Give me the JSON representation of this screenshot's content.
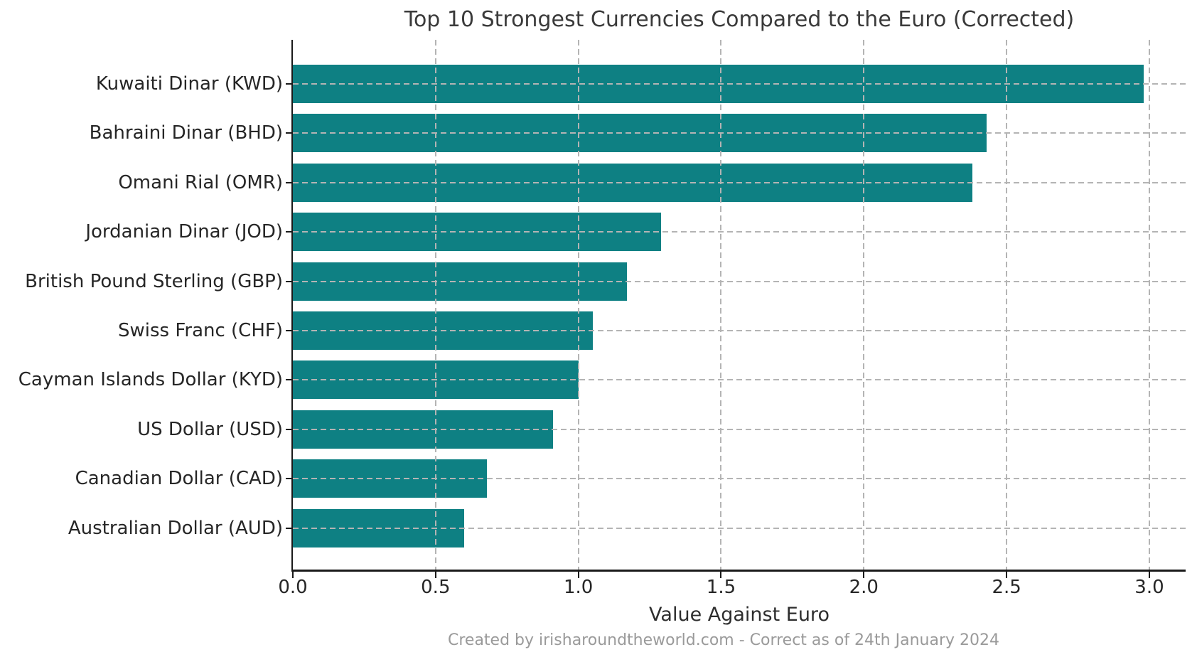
{
  "chart_data": {
    "type": "bar",
    "orientation": "horizontal",
    "title": "Top 10 Strongest Currencies Compared to the Euro (Corrected)",
    "xlabel": "Value Against Euro",
    "footer": "Created by irisharoundtheworld.com - Correct as of 24th January 2024",
    "categories": [
      "Kuwaiti Dinar (KWD)",
      "Bahraini Dinar (BHD)",
      "Omani Rial (OMR)",
      "Jordanian Dinar (JOD)",
      "British Pound Sterling (GBP)",
      "Swiss Franc (CHF)",
      "Cayman Islands Dollar (KYD)",
      "US Dollar (USD)",
      "Canadian Dollar (CAD)",
      "Australian Dollar (AUD)"
    ],
    "codes": [
      "kwd",
      "bhd",
      "omr",
      "jod",
      "gbp",
      "chf",
      "kyd",
      "usd",
      "cad",
      "aud"
    ],
    "values": [
      2.98,
      2.43,
      2.38,
      1.29,
      1.17,
      1.05,
      1.0,
      0.91,
      0.68,
      0.6
    ],
    "xlim": [
      0,
      3.127
    ],
    "xticks": [
      0.0,
      0.5,
      1.0,
      1.5,
      2.0,
      2.5,
      3.0
    ],
    "xtick_labels": [
      "0.0",
      "0.5",
      "1.0",
      "1.5",
      "2.0",
      "2.5",
      "3.0"
    ],
    "grid": "both-dashed-above-bars",
    "legend": "none",
    "colors": {
      "bar": "#0e8083",
      "grid": "#b4b4b4",
      "spine": "#1a1a1a",
      "title_text": "#3a3a3a",
      "tick_text": "#262626",
      "footer_text": "#9a9a9a",
      "background": "#ffffff"
    }
  }
}
